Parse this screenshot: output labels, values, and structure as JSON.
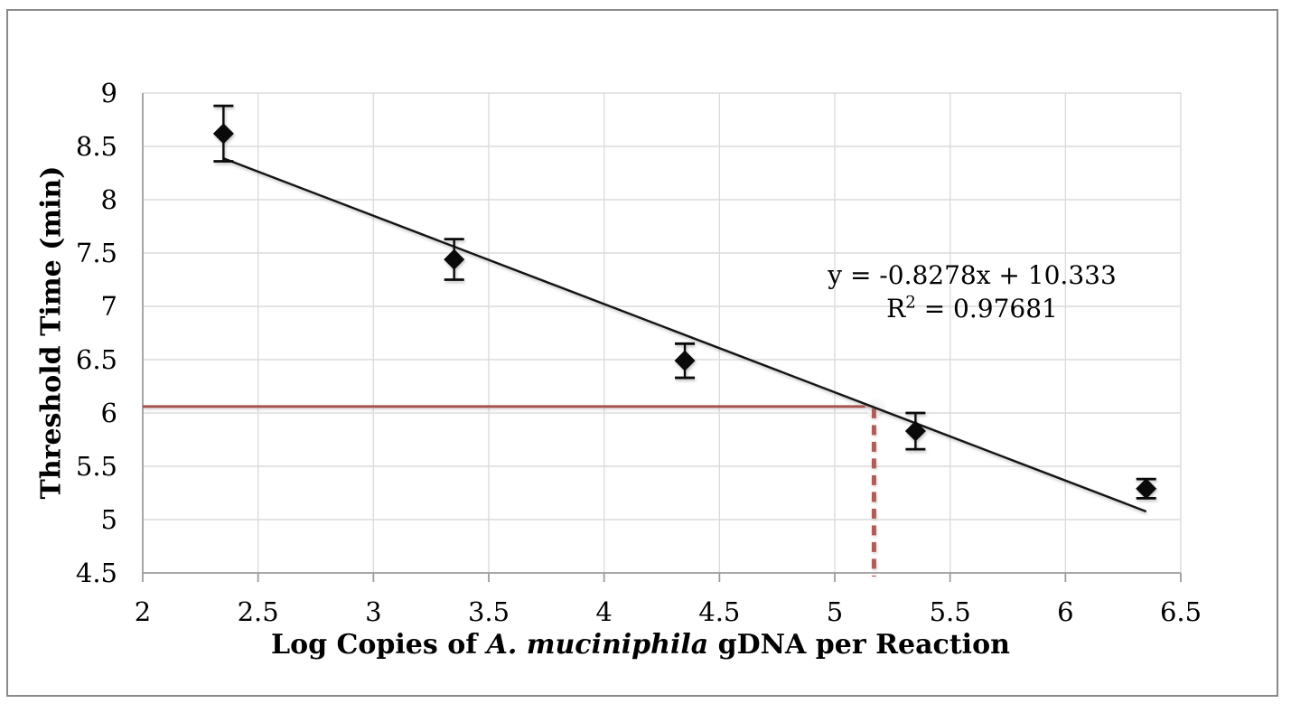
{
  "chart_data": {
    "type": "scatter",
    "title": "",
    "ylabel": "Threshold Time (min)",
    "xlabel_prefix": "Log Copies of ",
    "xlabel_italic": "A. muciniphila",
    "xlabel_suffix": " gDNA per Reaction",
    "xlim": [
      2,
      6.5
    ],
    "ylim": [
      4.5,
      9
    ],
    "x_ticks": [
      2,
      2.5,
      3,
      3.5,
      4,
      4.5,
      5,
      5.5,
      6,
      6.5
    ],
    "x_tick_labels": [
      "2",
      "2.5",
      "3",
      "3.5",
      "4",
      "4.5",
      "5",
      "5.5",
      "6",
      "6.5"
    ],
    "y_ticks": [
      9,
      8.5,
      8,
      7.5,
      7,
      6.5,
      6,
      5.5,
      5,
      4.5
    ],
    "y_tick_labels": [
      "9",
      "8.5",
      "8",
      "7.5",
      "7",
      "6.5",
      "6",
      "5.5",
      "5",
      "4.5"
    ],
    "grid": true,
    "legend": "none",
    "series": [
      {
        "name": "threshold-time-standard-curve",
        "marker": "diamond",
        "color": "#0a0a0a",
        "points": [
          {
            "x": 2.35,
            "y": 8.62,
            "err": 0.26
          },
          {
            "x": 3.35,
            "y": 7.44,
            "err": 0.19
          },
          {
            "x": 4.35,
            "y": 6.49,
            "err": 0.16
          },
          {
            "x": 5.35,
            "y": 5.83,
            "err": 0.17
          },
          {
            "x": 6.35,
            "y": 5.29,
            "err": 0.09
          }
        ]
      }
    ],
    "trendline": {
      "slope": -0.8278,
      "intercept": 10.333,
      "x_start": 2.35,
      "x_end": 6.35,
      "color": "#141414",
      "equation_line1": "y = -0.8278x + 10.333",
      "equation_line2_base": "R",
      "equation_line2_sup": "2",
      "equation_line2_rest": " = 0.97681"
    },
    "annotation_lines": {
      "threshold_y": 6.06,
      "crossing_x": 5.17,
      "solid_color": "#a6524e",
      "dashed_color": "#b35c57"
    },
    "colors": {
      "gridline": "#dcdcdc",
      "axis": "#9d9d9d",
      "tick": "#9d9d9d",
      "background": "#ffffff",
      "border": "#8a8a8a",
      "text": "#000000"
    }
  }
}
